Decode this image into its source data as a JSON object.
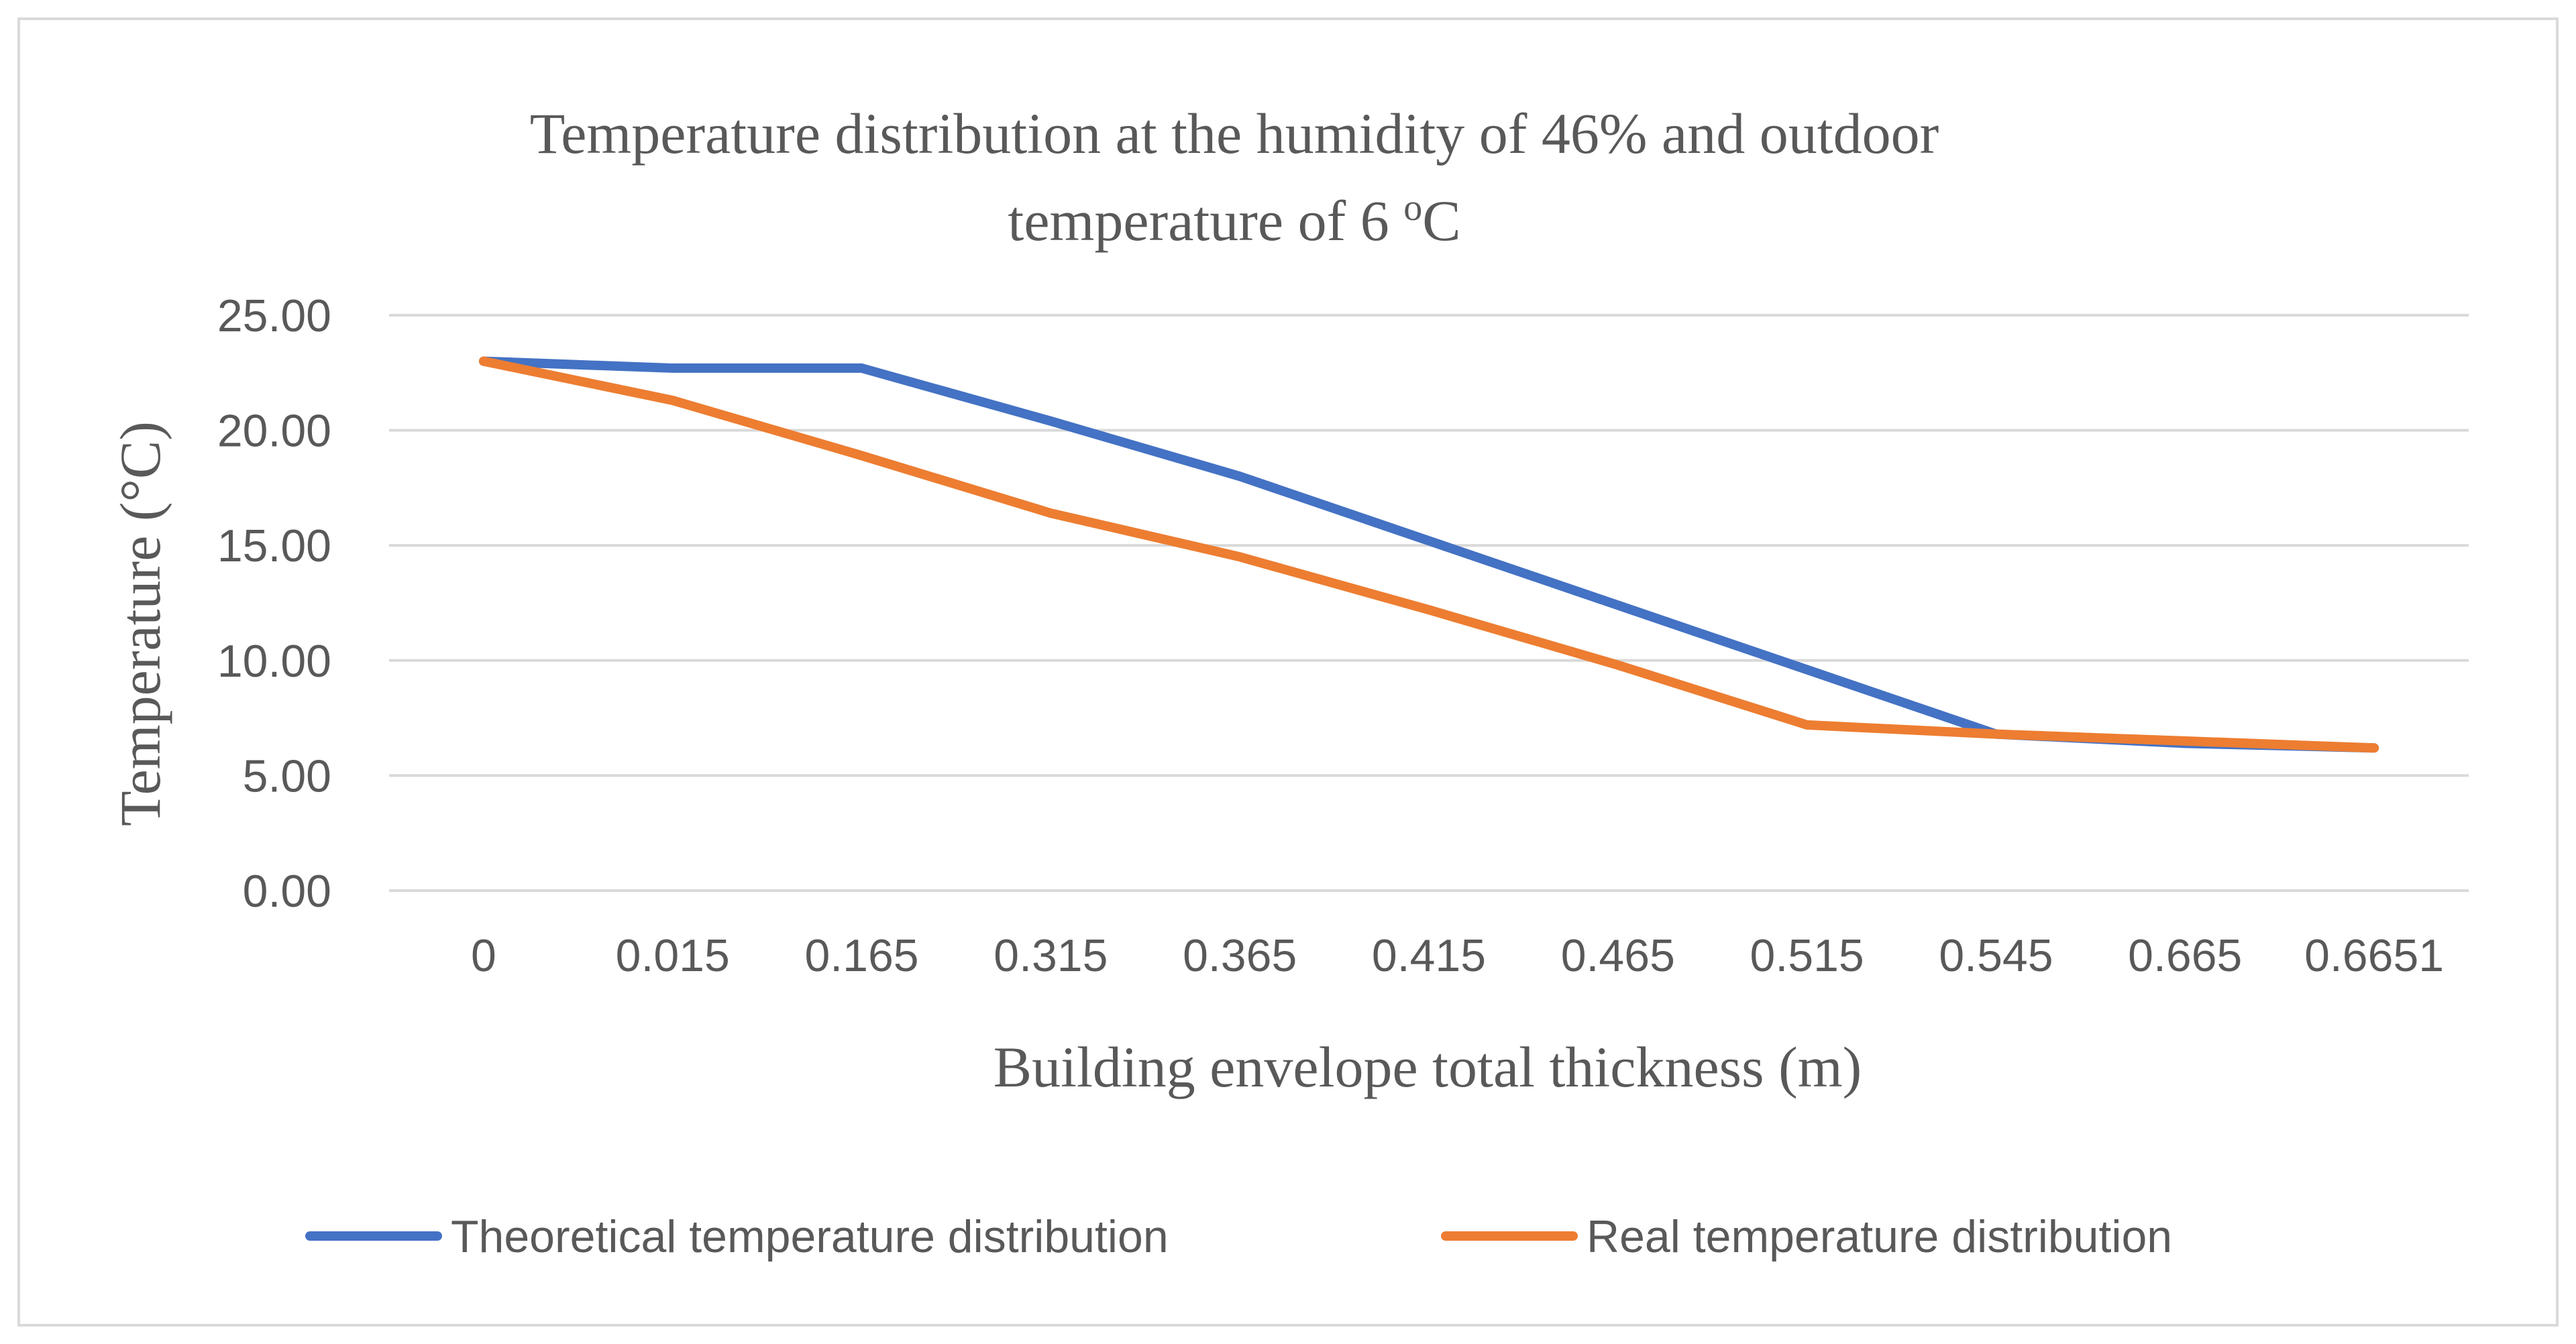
{
  "chart_data": {
    "type": "line",
    "title_line1": "Temperature distribution at the humidity of 46% and outdoor",
    "title_line2_prefix": "temperature of 6 ",
    "title_line2_sup": "o",
    "title_line2_suffix": "C",
    "xlabel": "Building envelope total thickness  (m)",
    "ylabel": "Temperature (°C)",
    "categories": [
      "0",
      "0.015",
      "0.165",
      "0.315",
      "0.365",
      "0.415",
      "0.465",
      "0.515",
      "0.545",
      "0.665",
      "0.6651"
    ],
    "ylim": [
      0,
      25
    ],
    "yticks": [
      "0.00",
      "5.00",
      "10.00",
      "15.00",
      "20.00",
      "25.00"
    ],
    "ytick_values": [
      0,
      5,
      10,
      15,
      20,
      25
    ],
    "grid": true,
    "legend_position": "bottom",
    "series": [
      {
        "name": "Theoretical temperature distribution",
        "color": "#4472c4",
        "values": [
          23.0,
          22.7,
          22.7,
          20.4,
          18.0,
          15.2,
          12.4,
          9.6,
          6.8,
          6.4,
          6.2
        ]
      },
      {
        "name": "Real temperature distribution",
        "color": "#ed7d31",
        "values": [
          23.0,
          21.3,
          18.9,
          16.4,
          14.5,
          12.2,
          9.8,
          7.2,
          6.8,
          6.5,
          6.2
        ]
      }
    ]
  }
}
